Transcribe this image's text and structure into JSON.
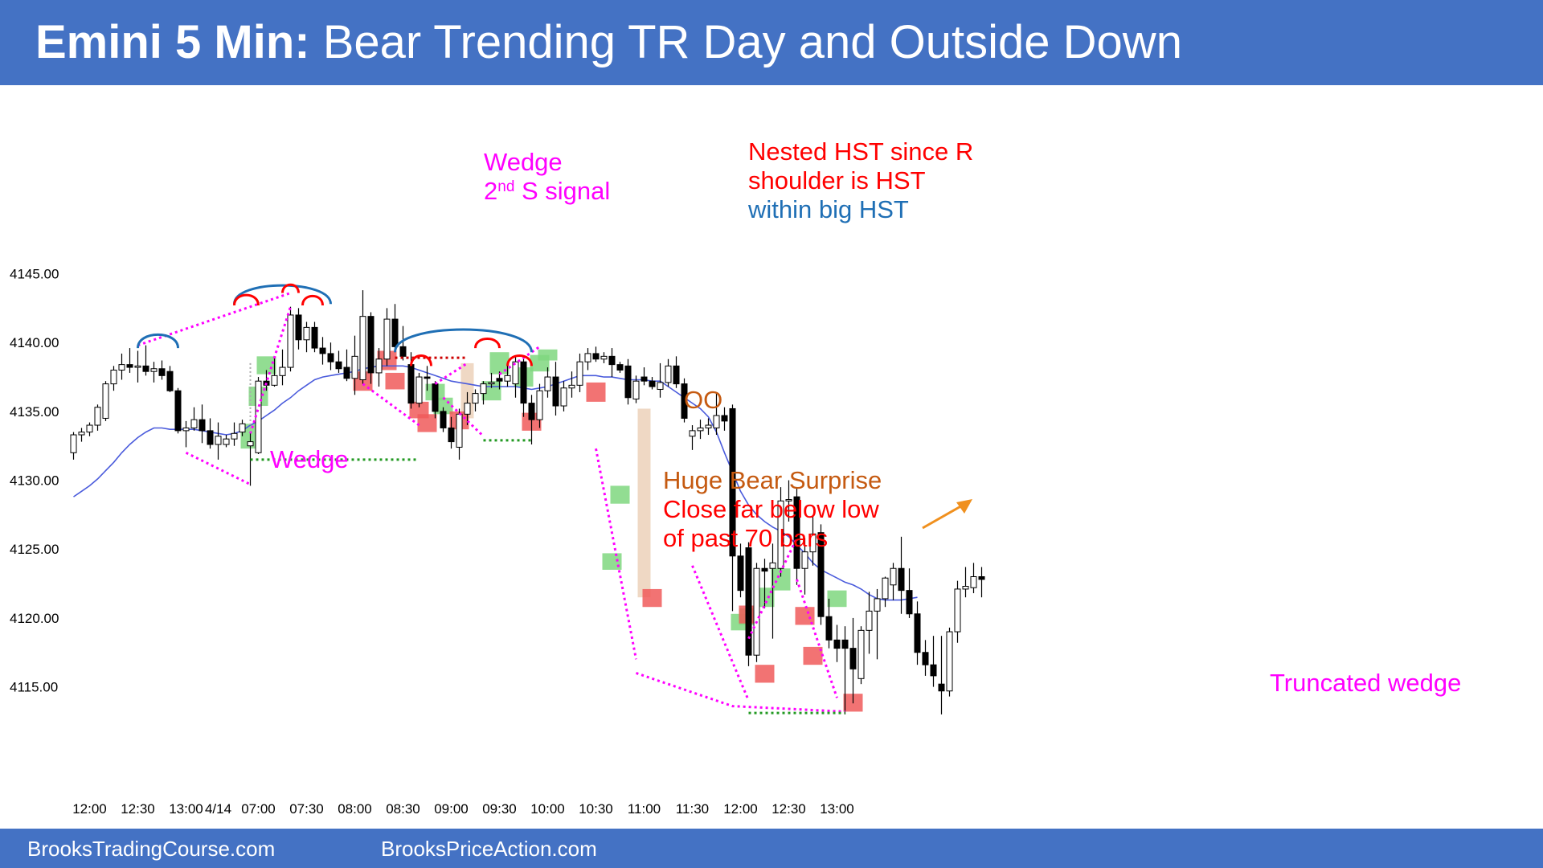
{
  "header": {
    "title_bold": "Emini 5 Min:",
    "title_rest": " Bear Trending TR Day and Outside Down"
  },
  "footer": {
    "left": "BrooksTradingCourse.com",
    "right": "BrooksPriceAction.com"
  },
  "colors": {
    "banner": "#4472c4",
    "magenta": "#ff00ff",
    "red": "#ff0000",
    "blue": "#1f6fb5",
    "orange": "#c55a11",
    "ema": "#4a5bdc",
    "buy_box": "#7fd77f",
    "sell_box": "#f05a5a",
    "green_line": "#229922"
  },
  "chart_data": {
    "type": "candlestick",
    "ylim": [
      4112,
      4149
    ],
    "y_ticks": [
      {
        "value": 4145,
        "label": "4145.00"
      },
      {
        "value": 4140,
        "label": "4140.00"
      },
      {
        "value": 4135,
        "label": "4135.00"
      },
      {
        "value": 4130,
        "label": "4130.00"
      },
      {
        "value": 4125,
        "label": "4125.00"
      },
      {
        "value": 4120,
        "label": "4120.00"
      },
      {
        "value": 4115,
        "label": "4115.00"
      }
    ],
    "x_ticks": [
      {
        "bar": 2,
        "label": "12:00"
      },
      {
        "bar": 8,
        "label": "12:30"
      },
      {
        "bar": 14,
        "label": "13:00"
      },
      {
        "bar": 18,
        "label": "4/14"
      },
      {
        "bar": 23,
        "label": "07:00"
      },
      {
        "bar": 29,
        "label": "07:30"
      },
      {
        "bar": 35,
        "label": "08:00"
      },
      {
        "bar": 41,
        "label": "08:30"
      },
      {
        "bar": 47,
        "label": "09:00"
      },
      {
        "bar": 53,
        "label": "09:30"
      },
      {
        "bar": 59,
        "label": "10:00"
      },
      {
        "bar": 65,
        "label": "10:30"
      },
      {
        "bar": 71,
        "label": "11:00"
      },
      {
        "bar": 77,
        "label": "11:30"
      },
      {
        "bar": 83,
        "label": "12:00"
      },
      {
        "bar": 89,
        "label": "12:30"
      },
      {
        "bar": 95,
        "label": "13:00"
      }
    ],
    "ohlc": [
      [
        4132.0,
        4133.5,
        4131.5,
        4133.3
      ],
      [
        4133.3,
        4133.8,
        4132.8,
        4133.5
      ],
      [
        4133.5,
        4134.2,
        4133.2,
        4134.0
      ],
      [
        4134.0,
        4135.5,
        4133.6,
        4135.3
      ],
      [
        4134.5,
        4137.2,
        4134.3,
        4137.0
      ],
      [
        4137.0,
        4138.3,
        4136.5,
        4138.0
      ],
      [
        4138.0,
        4139.2,
        4137.3,
        4138.4
      ],
      [
        4138.4,
        4139.6,
        4137.8,
        4138.2
      ],
      [
        4138.2,
        4139.4,
        4137.1,
        4138.3
      ],
      [
        4138.3,
        4139.8,
        4137.6,
        4137.9
      ],
      [
        4137.9,
        4138.6,
        4137.1,
        4138.1
      ],
      [
        4138.1,
        4138.7,
        4137.3,
        4137.6
      ],
      [
        4137.9,
        4138.3,
        4136.4,
        4136.5
      ],
      [
        4136.5,
        4136.7,
        4133.4,
        4133.6
      ],
      [
        4133.6,
        4134.3,
        4132.4,
        4133.8
      ],
      [
        4133.8,
        4135.3,
        4133.6,
        4134.4
      ],
      [
        4134.4,
        4135.5,
        4132.7,
        4133.6
      ],
      [
        4133.6,
        4134.5,
        4132.3,
        4132.6
      ],
      [
        4132.6,
        4134.2,
        4131.5,
        4133.2
      ],
      [
        4132.6,
        4133.3,
        4132.4,
        4133.0
      ],
      [
        4133.0,
        4134.2,
        4132.5,
        4133.4
      ],
      [
        4133.5,
        4134.4,
        4133.2,
        4134.1
      ],
      [
        4132.5,
        4133.4,
        4129.6,
        4132.8
      ],
      [
        4132.0,
        4137.5,
        4131.9,
        4137.2
      ],
      [
        4137.2,
        4138.0,
        4136.5,
        4136.9
      ],
      [
        4136.9,
        4139.0,
        4136.8,
        4137.6
      ],
      [
        4137.6,
        4139.5,
        4136.9,
        4138.2
      ],
      [
        4138.2,
        4142.6,
        4137.9,
        4142.0
      ],
      [
        4142.0,
        4142.5,
        4139.5,
        4140.2
      ],
      [
        4140.2,
        4141.5,
        4139.3,
        4141.1
      ],
      [
        4141.1,
        4141.5,
        4139.3,
        4139.6
      ],
      [
        4139.6,
        4140.4,
        4138.4,
        4139.2
      ],
      [
        4139.2,
        4140.0,
        4138.0,
        4138.6
      ],
      [
        4138.6,
        4139.4,
        4137.8,
        4138.1
      ],
      [
        4138.2,
        4139.5,
        4137.2,
        4137.4
      ],
      [
        4137.4,
        4140.5,
        4136.2,
        4139.0
      ],
      [
        4137.3,
        4143.8,
        4137.0,
        4141.9
      ],
      [
        4141.9,
        4142.2,
        4137.0,
        4137.8
      ],
      [
        4137.8,
        4139.6,
        4136.8,
        4138.8
      ],
      [
        4138.8,
        4142.5,
        4138.3,
        4141.7
      ],
      [
        4141.7,
        4142.8,
        4139.3,
        4139.7
      ],
      [
        4139.7,
        4141.2,
        4138.7,
        4139.0
      ],
      [
        4138.4,
        4139.3,
        4135.2,
        4135.6
      ],
      [
        4135.6,
        4137.8,
        4135.3,
        4137.5
      ],
      [
        4137.5,
        4138.3,
        4136.5,
        4137.4
      ],
      [
        4137.0,
        4137.2,
        4134.5,
        4135.0
      ],
      [
        4135.0,
        4135.3,
        4133.5,
        4133.8
      ],
      [
        4133.8,
        4134.6,
        4132.3,
        4132.8
      ],
      [
        4132.4,
        4135.2,
        4131.5,
        4134.8
      ],
      [
        4134.8,
        4136.4,
        4134.0,
        4135.6
      ],
      [
        4135.6,
        4136.6,
        4135.0,
        4136.3
      ],
      [
        4136.3,
        4137.2,
        4135.5,
        4137.0
      ],
      [
        4137.0,
        4137.8,
        4136.7,
        4137.1
      ],
      [
        4137.4,
        4137.9,
        4136.6,
        4137.2
      ],
      [
        4137.2,
        4138.5,
        4136.8,
        4137.6
      ],
      [
        4137.0,
        4139.0,
        4136.0,
        4138.6
      ],
      [
        4138.6,
        4139.0,
        4134.6,
        4135.6
      ],
      [
        4135.6,
        4136.2,
        4132.6,
        4134.4
      ],
      [
        4134.4,
        4137.0,
        4133.8,
        4136.5
      ],
      [
        4136.5,
        4138.2,
        4136.0,
        4137.5
      ],
      [
        4137.5,
        4138.6,
        4134.7,
        4135.4
      ],
      [
        4135.4,
        4137.2,
        4135.0,
        4136.7
      ],
      [
        4136.7,
        4137.9,
        4136.0,
        4136.9
      ],
      [
        4136.9,
        4139.2,
        4136.4,
        4138.6
      ],
      [
        4138.6,
        4139.6,
        4138.0,
        4139.2
      ],
      [
        4139.2,
        4139.7,
        4138.6,
        4138.8
      ],
      [
        4138.8,
        4139.3,
        4138.5,
        4139.0
      ],
      [
        4139.0,
        4139.6,
        4137.5,
        4138.4
      ],
      [
        4138.4,
        4138.6,
        4137.8,
        4138.0
      ],
      [
        4138.3,
        4138.8,
        4135.5,
        4136.0
      ],
      [
        4135.9,
        4137.6,
        4135.6,
        4137.2
      ],
      [
        4137.5,
        4138.2,
        4136.9,
        4137.2
      ],
      [
        4137.2,
        4137.5,
        4136.6,
        4136.8
      ],
      [
        4136.6,
        4138.5,
        4136.0,
        4137.1
      ],
      [
        4137.1,
        4138.8,
        4136.8,
        4138.3
      ],
      [
        4138.3,
        4139.0,
        4136.7,
        4137.0
      ],
      [
        4137.0,
        4137.4,
        4134.2,
        4134.5
      ],
      [
        4133.2,
        4134.0,
        4132.2,
        4133.6
      ],
      [
        4133.6,
        4134.4,
        4133.0,
        4133.8
      ],
      [
        4133.8,
        4134.5,
        4133.3,
        4134.0
      ],
      [
        4133.8,
        4136.3,
        4133.3,
        4134.7
      ],
      [
        4134.7,
        4135.3,
        4133.6,
        4134.3
      ],
      [
        4135.2,
        4135.5,
        4120.5,
        4124.5
      ],
      [
        4124.5,
        4125.4,
        4121.5,
        4122.0
      ],
      [
        4125.1,
        4125.5,
        4116.5,
        4117.3
      ],
      [
        4117.3,
        4124.0,
        4116.8,
        4123.6
      ],
      [
        4123.6,
        4124.3,
        4120.7,
        4123.4
      ],
      [
        4123.6,
        4125.4,
        4118.5,
        4124.0
      ],
      [
        4123.6,
        4129.5,
        4123.0,
        4128.5
      ],
      [
        4128.5,
        4130.0,
        4127.0,
        4128.6
      ],
      [
        4128.8,
        4129.5,
        4122.4,
        4123.6
      ],
      [
        4123.6,
        4125.8,
        4121.7,
        4124.8
      ],
      [
        4124.8,
        4127.4,
        4123.8,
        4126.1
      ],
      [
        4126.2,
        4126.8,
        4119.5,
        4120.1
      ],
      [
        4120.1,
        4121.4,
        4117.8,
        4118.4
      ],
      [
        4118.4,
        4119.5,
        4116.8,
        4117.8
      ],
      [
        4118.4,
        4119.4,
        4113.0,
        4117.8
      ],
      [
        4117.8,
        4120.0,
        4113.8,
        4116.3
      ],
      [
        4115.6,
        4119.4,
        4115.2,
        4119.1
      ],
      [
        4119.1,
        4121.9,
        4117.4,
        4120.5
      ],
      [
        4120.5,
        4122.1,
        4117.0,
        4121.4
      ],
      [
        4121.4,
        4123.0,
        4120.8,
        4122.9
      ],
      [
        4122.4,
        4124.0,
        4121.3,
        4123.6
      ],
      [
        4123.6,
        4125.9,
        4120.3,
        4122.0
      ],
      [
        4122.0,
        4123.6,
        4120.0,
        4120.3
      ],
      [
        4120.3,
        4121.2,
        4116.6,
        4117.5
      ],
      [
        4117.5,
        4118.4,
        4115.8,
        4116.6
      ],
      [
        4116.6,
        4118.7,
        4115.0,
        4115.8
      ],
      [
        4115.2,
        4118.7,
        4113.0,
        4114.7
      ],
      [
        4114.7,
        4119.3,
        4114.3,
        4119.0
      ],
      [
        4119.0,
        4122.7,
        4118.2,
        4122.1
      ],
      [
        4122.1,
        4123.7,
        4121.5,
        4122.3
      ],
      [
        4122.2,
        4124.0,
        4121.8,
        4123.0
      ],
      [
        4123.0,
        4123.7,
        4121.5,
        4122.8
      ]
    ],
    "ema": [
      4128.8,
      4129.2,
      4129.6,
      4130.1,
      4130.7,
      4131.3,
      4132.0,
      4132.6,
      4133.1,
      4133.5,
      4133.8,
      4133.8,
      4133.7,
      4133.7,
      4133.7,
      4133.7,
      4133.6,
      4133.5,
      4133.4,
      4133.3,
      4133.4,
      4133.6,
      4134.0,
      4134.3,
      4134.7,
      4135.1,
      4135.6,
      4136.0,
      4136.5,
      4136.9,
      4137.3,
      4137.5,
      4137.6,
      4137.7,
      4137.8,
      4137.9,
      4138.1,
      4138.2,
      4138.3,
      4138.3,
      4138.3,
      4138.3,
      4138.2,
      4138.0,
      4137.8,
      4137.6,
      4137.4,
      4137.2,
      4137.1,
      4137.0,
      4136.9,
      4136.8,
      4136.8,
      4136.8,
      4136.8,
      4136.8,
      4136.7,
      4136.6,
      4136.7,
      4136.8,
      4137.0,
      4137.2,
      4137.4,
      4137.6,
      4137.6,
      4137.6,
      4137.5,
      4137.5,
      4137.4,
      4137.3,
      4137.3,
      4137.3,
      4137.2,
      4137.2,
      4136.8,
      4136.4,
      4136.0,
      4135.6,
      4135.2,
      4134.6,
      4133.5,
      4132.0,
      4130.6,
      4129.2,
      4128.2,
      4127.5,
      4127.0,
      4126.6,
      4126.3,
      4125.9,
      4125.3,
      4124.7,
      4124.0,
      4123.5,
      4123.2,
      4122.9,
      4122.6,
      4122.4,
      4122.1,
      4121.7,
      4121.4,
      4121.3,
      4121.3,
      4121.3,
      4121.4,
      4121.5
    ],
    "buy_signals": [
      [
        22,
        4132.3,
        4134.1
      ],
      [
        23,
        4135.4,
        4136.8
      ],
      [
        24,
        4137.7,
        4139.0
      ],
      [
        45,
        4135.8,
        4137.0
      ],
      [
        46,
        4134.8,
        4136.0
      ],
      [
        52,
        4135.8,
        4137.2
      ],
      [
        53,
        4137.7,
        4139.3
      ],
      [
        56,
        4136.8,
        4138.2
      ],
      [
        58,
        4137.9,
        4139.1
      ],
      [
        59,
        4138.7,
        4139.5
      ],
      [
        67,
        4123.5,
        4124.7
      ],
      [
        68,
        4128.3,
        4129.6
      ],
      [
        83,
        4119.1,
        4120.3
      ],
      [
        84,
        4119.5,
        4120.7
      ],
      [
        86,
        4120.8,
        4122.2
      ],
      [
        88,
        4122.0,
        4123.6
      ],
      [
        95,
        4120.8,
        4122.0
      ]
    ],
    "sell_signals": [
      [
        36,
        4136.5,
        4137.9
      ],
      [
        39,
        4138.0,
        4139.4
      ],
      [
        40,
        4136.6,
        4137.8
      ],
      [
        43,
        4134.5,
        4135.7
      ],
      [
        44,
        4133.5,
        4134.8
      ],
      [
        48,
        4133.7,
        4135.0
      ],
      [
        57,
        4133.6,
        4134.9
      ],
      [
        65,
        4135.7,
        4137.1
      ],
      [
        72,
        4120.8,
        4122.1
      ],
      [
        84,
        4119.6,
        4120.9
      ],
      [
        86,
        4115.3,
        4116.6
      ],
      [
        91,
        4119.5,
        4120.8
      ],
      [
        92,
        4116.6,
        4117.9
      ],
      [
        97,
        4113.2,
        4114.5
      ]
    ],
    "shaded_bars": [
      [
        49,
        4134.5,
        4138.5
      ],
      [
        71,
        4121.5,
        4135.2
      ]
    ],
    "hst_arcs": [
      {
        "x1": 8,
        "x2": 13,
        "y": 4139.6,
        "color": "blue",
        "h": 1.3
      },
      {
        "x1": 20,
        "x2": 32,
        "y": 4142.8,
        "color": "blue",
        "h": 1.8
      },
      {
        "x1": 20,
        "x2": 23,
        "y": 4142.7,
        "color": "red",
        "h": 1.0
      },
      {
        "x1": 26,
        "x2": 28,
        "y": 4143.6,
        "color": "red",
        "h": 0.8
      },
      {
        "x1": 28.5,
        "x2": 31,
        "y": 4142.7,
        "color": "red",
        "h": 0.9
      },
      {
        "x1": 40,
        "x2": 57,
        "y": 4139.3,
        "color": "blue",
        "h": 2.2
      },
      {
        "x1": 42,
        "x2": 44.5,
        "y": 4138.3,
        "color": "red",
        "h": 1.0
      },
      {
        "x1": 50,
        "x2": 53,
        "y": 4139.6,
        "color": "red",
        "h": 0.9
      },
      {
        "x1": 54,
        "x2": 57,
        "y": 4138.3,
        "color": "red",
        "h": 1.0
      }
    ],
    "annotations": [
      {
        "lines": [
          "Wedge",
          "2nd S signal"
        ],
        "color": "magenta"
      },
      {
        "lines": [
          "Nested HST since R",
          "shoulder is HST"
        ],
        "color": "red"
      },
      {
        "lines": [
          "within big HST"
        ],
        "color": "blue"
      },
      {
        "lines": [
          "Wedge"
        ],
        "color": "magenta"
      },
      {
        "lines": [
          "OO"
        ],
        "color": "orange"
      },
      {
        "lines": [
          "Huge Bear Surprise"
        ],
        "color": "orange"
      },
      {
        "lines": [
          "Close far below low",
          "of past 70 bars"
        ],
        "color": "red"
      },
      {
        "lines": [
          "Truncated wedge"
        ],
        "color": "magenta"
      }
    ]
  }
}
